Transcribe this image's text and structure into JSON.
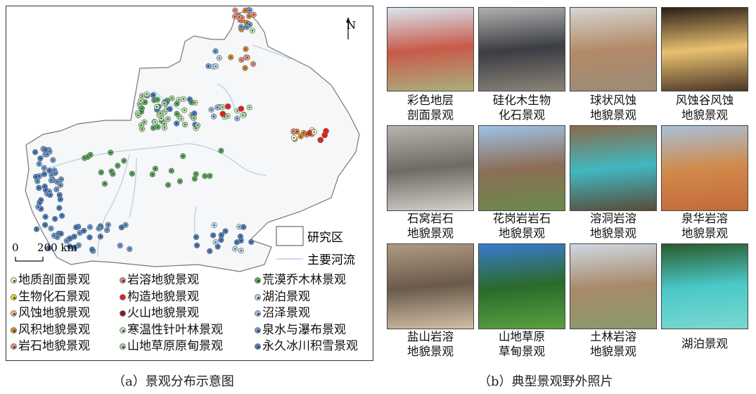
{
  "panel_a": {
    "caption": "（a）景观分布示意图",
    "north_label": "N",
    "scale": {
      "zero": "0",
      "distance": "200 km"
    },
    "map_legend": {
      "study_area": "研究区",
      "main_rivers": "主要河流"
    },
    "legend_columns": [
      [
        {
          "label": "地质剖面景观",
          "color": "#f2efc8"
        },
        {
          "label": "生物化石景观",
          "color": "#e8e020"
        },
        {
          "label": "风蚀地貌景观",
          "color": "#f0b98a"
        },
        {
          "label": "风积地貌景观",
          "color": "#d98a2a"
        },
        {
          "label": "岩石地貌景观",
          "color": "#ec8f80"
        }
      ],
      [
        {
          "label": "岩溶地貌景观",
          "color": "#e87c7c"
        },
        {
          "label": "构造地貌景观",
          "color": "#e02020",
          "solid": true
        },
        {
          "label": "火山地貌景观",
          "color": "#8e1a1a",
          "solid": true
        },
        {
          "label": "寒温性针叶林景观",
          "color": "#b8e6b0"
        },
        {
          "label": "山地草原原甸景观",
          "color": "#a6d39c"
        }
      ],
      [
        {
          "label": "荒漠乔木林景观",
          "color": "#5aab5a"
        },
        {
          "label": "湖泊景观",
          "color": "#b6d8ee"
        },
        {
          "label": "沼泽景观",
          "color": "#9ab8e0"
        },
        {
          "label": "泉水与瀑布景观",
          "color": "#6e9bd0"
        },
        {
          "label": "永久冰川积雪景观",
          "color": "#4a7fc0"
        }
      ]
    ],
    "river_color": "#b8cfe8"
  },
  "panel_b": {
    "caption": "（b）典型景观野外照片",
    "photos": [
      {
        "line1": "彩色地层",
        "line2": "剖面景观",
        "colors": [
          "#d9e6f0",
          "#c95a4a",
          "#a9b07a"
        ]
      },
      {
        "line1": "硅化木生物",
        "line2": "化石景观",
        "colors": [
          "#b0b0ae",
          "#3b3d44",
          "#8a8378"
        ]
      },
      {
        "line1": "球状风蚀",
        "line2": "地貌景观",
        "colors": [
          "#d6d6d2",
          "#b38a68",
          "#9c8c78"
        ]
      },
      {
        "line1": "风蚀谷风蚀",
        "line2": "地貌景观",
        "colors": [
          "#2a1e16",
          "#e8c070",
          "#4a3626"
        ]
      },
      {
        "line1": "石窝岩石",
        "line2": "地貌景观",
        "colors": [
          "#b7b4ae",
          "#6e6a64",
          "#d3d0c9"
        ]
      },
      {
        "line1": "花岗岩岩石",
        "line2": "地貌景观",
        "colors": [
          "#9ec2e6",
          "#8c6e56",
          "#6a8a4a"
        ]
      },
      {
        "line1": "溶洞岩溶",
        "line2": "地貌景观",
        "colors": [
          "#8a6a4a",
          "#40b8c0",
          "#5a4a3a"
        ]
      },
      {
        "line1": "泉华岩溶",
        "line2": "地貌景观",
        "colors": [
          "#a8c0d8",
          "#d08a4a",
          "#c46a3a"
        ]
      },
      {
        "line1": "盐山岩溶",
        "line2": "地貌景观",
        "colors": [
          "#b09a84",
          "#6a5a4a",
          "#d0c0a8"
        ]
      },
      {
        "line1": "山地草原",
        "line2": "草甸景观",
        "colors": [
          "#3a7ad0",
          "#2a6a2a",
          "#5aa040"
        ]
      },
      {
        "line1": "土林岩溶",
        "line2": "地貌景观",
        "colors": [
          "#cfd8e2",
          "#a88a6a",
          "#8a9a6a"
        ]
      },
      {
        "line1": "湖泊景观",
        "line2": "",
        "colors": [
          "#2a5a2a",
          "#4ac8c8",
          "#7ad8d0"
        ]
      }
    ]
  }
}
